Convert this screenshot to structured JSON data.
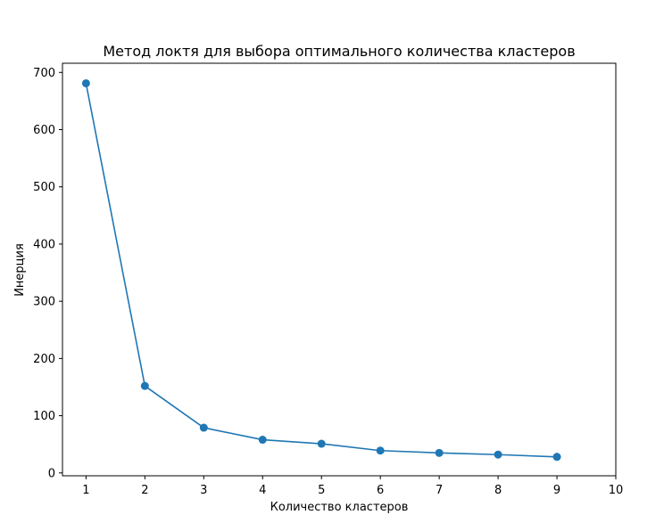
{
  "chart_data": {
    "type": "line",
    "title": "Метод локтя для выбора оптимального количества кластеров",
    "xlabel": "Количество кластеров",
    "ylabel": "Инерция",
    "x": [
      1,
      2,
      3,
      4,
      5,
      6,
      7,
      8,
      9
    ],
    "series": [
      {
        "values": [
          681,
          152,
          79,
          58,
          51,
          39,
          35,
          32,
          28
        ],
        "marker": "circle"
      }
    ],
    "xlim": [
      0.6,
      10.0
    ],
    "ylim": [
      -5,
      716
    ],
    "xticks": [
      1,
      2,
      3,
      4,
      5,
      6,
      7,
      8,
      9,
      10
    ],
    "yticks": [
      0,
      100,
      200,
      300,
      400,
      500,
      600,
      700
    ],
    "grid": false,
    "colors": {
      "line": "#1f77b4",
      "marker": "#1f77b4",
      "frame": "#000000"
    }
  }
}
